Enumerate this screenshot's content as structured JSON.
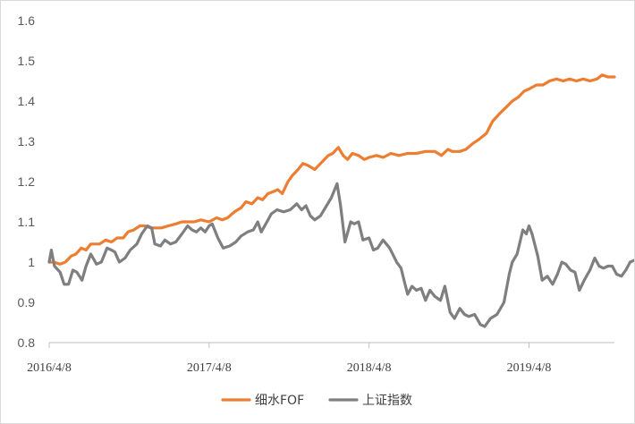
{
  "chart_data": {
    "type": "line",
    "title": "",
    "xlabel": "",
    "ylabel": "",
    "ylim": [
      0.8,
      1.6
    ],
    "y_ticks": [
      "0.8",
      "0.9",
      "1",
      "1.1",
      "1.2",
      "1.3",
      "1.4",
      "1.5",
      "1.6"
    ],
    "x_range": [
      "2016/4/8",
      "2019/10/20"
    ],
    "x_ticks": [
      "2016/4/8",
      "2017/4/8",
      "2018/4/8",
      "2019/4/8"
    ],
    "grid": false,
    "legend_position": "bottom-center",
    "series": [
      {
        "name": "细水FOF",
        "color": "#ED7D31",
        "points": [
          [
            "2016/4/8",
            1.0
          ],
          [
            "2016/4/18",
            1.0
          ],
          [
            "2016/5/3",
            0.995
          ],
          [
            "2016/5/15",
            1.0
          ],
          [
            "2016/5/28",
            1.015
          ],
          [
            "2016/6/8",
            1.02
          ],
          [
            "2016/6/20",
            1.035
          ],
          [
            "2016/7/1",
            1.03
          ],
          [
            "2016/7/12",
            1.045
          ],
          [
            "2016/8/1",
            1.045
          ],
          [
            "2016/8/15",
            1.055
          ],
          [
            "2016/8/28",
            1.05
          ],
          [
            "2016/9/10",
            1.06
          ],
          [
            "2016/9/24",
            1.06
          ],
          [
            "2016/10/5",
            1.075
          ],
          [
            "2016/10/18",
            1.08
          ],
          [
            "2016/11/1",
            1.09
          ],
          [
            "2016/11/12",
            1.09
          ],
          [
            "2016/11/25",
            1.085
          ],
          [
            "2016/12/8",
            1.085
          ],
          [
            "2016/12/20",
            1.085
          ],
          [
            "2017/1/5",
            1.09
          ],
          [
            "2017/1/22",
            1.095
          ],
          [
            "2017/2/5",
            1.1
          ],
          [
            "2017/2/20",
            1.1
          ],
          [
            "2017/3/5",
            1.1
          ],
          [
            "2017/3/20",
            1.105
          ],
          [
            "2017/4/8",
            1.1
          ],
          [
            "2017/4/25",
            1.11
          ],
          [
            "2017/5/8",
            1.105
          ],
          [
            "2017/5/20",
            1.11
          ],
          [
            "2017/6/5",
            1.125
          ],
          [
            "2017/6/20",
            1.135
          ],
          [
            "2017/7/1",
            1.15
          ],
          [
            "2017/7/15",
            1.145
          ],
          [
            "2017/7/28",
            1.16
          ],
          [
            "2017/8/8",
            1.155
          ],
          [
            "2017/8/20",
            1.17
          ],
          [
            "2017/9/1",
            1.175
          ],
          [
            "2017/9/12",
            1.18
          ],
          [
            "2017/9/22",
            1.17
          ],
          [
            "2017/10/5",
            1.2
          ],
          [
            "2017/10/15",
            1.215
          ],
          [
            "2017/10/28",
            1.23
          ],
          [
            "2017/11/8",
            1.245
          ],
          [
            "2017/11/20",
            1.24
          ],
          [
            "2017/12/5",
            1.23
          ],
          [
            "2017/12/18",
            1.245
          ],
          [
            "2018/1/5",
            1.265
          ],
          [
            "2018/1/15",
            1.27
          ],
          [
            "2018/1/28",
            1.285
          ],
          [
            "2018/2/8",
            1.265
          ],
          [
            "2018/2/18",
            1.255
          ],
          [
            "2018/3/1",
            1.27
          ],
          [
            "2018/3/15",
            1.265
          ],
          [
            "2018/3/28",
            1.255
          ],
          [
            "2018/4/8",
            1.26
          ],
          [
            "2018/4/25",
            1.265
          ],
          [
            "2018/5/10",
            1.26
          ],
          [
            "2018/5/28",
            1.27
          ],
          [
            "2018/6/15",
            1.265
          ],
          [
            "2018/7/5",
            1.27
          ],
          [
            "2018/7/25",
            1.27
          ],
          [
            "2018/8/15",
            1.275
          ],
          [
            "2018/9/5",
            1.275
          ],
          [
            "2018/9/20",
            1.265
          ],
          [
            "2018/10/5",
            1.28
          ],
          [
            "2018/10/15",
            1.275
          ],
          [
            "2018/11/1",
            1.275
          ],
          [
            "2018/11/15",
            1.28
          ],
          [
            "2018/12/1",
            1.295
          ],
          [
            "2018/12/15",
            1.305
          ],
          [
            "2019/1/1",
            1.32
          ],
          [
            "2019/1/15",
            1.35
          ],
          [
            "2019/2/1",
            1.37
          ],
          [
            "2019/2/15",
            1.385
          ],
          [
            "2019/3/1",
            1.4
          ],
          [
            "2019/3/15",
            1.41
          ],
          [
            "2019/3/28",
            1.425
          ],
          [
            "2019/4/8",
            1.43
          ],
          [
            "2019/4/25",
            1.44
          ],
          [
            "2019/5/10",
            1.44
          ],
          [
            "2019/5/25",
            1.45
          ],
          [
            "2019/6/10",
            1.455
          ],
          [
            "2019/6/25",
            1.45
          ],
          [
            "2019/7/10",
            1.455
          ],
          [
            "2019/7/25",
            1.45
          ],
          [
            "2019/8/10",
            1.455
          ],
          [
            "2019/8/25",
            1.45
          ],
          [
            "2019/9/10",
            1.455
          ],
          [
            "2019/9/22",
            1.465
          ],
          [
            "2019/10/5",
            1.46
          ],
          [
            "2019/10/20",
            1.46
          ]
        ]
      },
      {
        "name": "上证指数",
        "color": "#7F7F7F",
        "points": [
          [
            "2016/4/8",
            1.0
          ],
          [
            "2016/4/13",
            1.03
          ],
          [
            "2016/4/20",
            0.99
          ],
          [
            "2016/5/3",
            0.975
          ],
          [
            "2016/5/12",
            0.945
          ],
          [
            "2016/5/22",
            0.945
          ],
          [
            "2016/6/1",
            0.98
          ],
          [
            "2016/6/10",
            0.975
          ],
          [
            "2016/6/22",
            0.955
          ],
          [
            "2016/7/1",
            0.99
          ],
          [
            "2016/7/12",
            1.02
          ],
          [
            "2016/7/25",
            0.995
          ],
          [
            "2016/8/5",
            1.0
          ],
          [
            "2016/8/18",
            1.035
          ],
          [
            "2016/8/28",
            1.03
          ],
          [
            "2016/9/5",
            1.025
          ],
          [
            "2016/9/15",
            1.0
          ],
          [
            "2016/9/28",
            1.01
          ],
          [
            "2016/10/10",
            1.03
          ],
          [
            "2016/10/25",
            1.045
          ],
          [
            "2016/11/5",
            1.07
          ],
          [
            "2016/11/18",
            1.09
          ],
          [
            "2016/11/28",
            1.085
          ],
          [
            "2016/12/5",
            1.045
          ],
          [
            "2016/12/18",
            1.04
          ],
          [
            "2016/12/28",
            1.055
          ],
          [
            "2017/1/10",
            1.045
          ],
          [
            "2017/1/22",
            1.05
          ],
          [
            "2017/2/5",
            1.07
          ],
          [
            "2017/2/18",
            1.09
          ],
          [
            "2017/2/28",
            1.08
          ],
          [
            "2017/3/10",
            1.075
          ],
          [
            "2017/3/20",
            1.085
          ],
          [
            "2017/3/30",
            1.075
          ],
          [
            "2017/4/8",
            1.09
          ],
          [
            "2017/4/15",
            1.095
          ],
          [
            "2017/4/28",
            1.06
          ],
          [
            "2017/5/10",
            1.035
          ],
          [
            "2017/5/25",
            1.04
          ],
          [
            "2017/6/8",
            1.05
          ],
          [
            "2017/6/20",
            1.065
          ],
          [
            "2017/7/5",
            1.075
          ],
          [
            "2017/7/18",
            1.08
          ],
          [
            "2017/7/28",
            1.1
          ],
          [
            "2017/8/5",
            1.075
          ],
          [
            "2017/8/18",
            1.1
          ],
          [
            "2017/8/28",
            1.12
          ],
          [
            "2017/9/10",
            1.13
          ],
          [
            "2017/9/25",
            1.125
          ],
          [
            "2017/10/10",
            1.13
          ],
          [
            "2017/10/25",
            1.145
          ],
          [
            "2017/11/5",
            1.13
          ],
          [
            "2017/11/15",
            1.14
          ],
          [
            "2017/11/25",
            1.115
          ],
          [
            "2017/12/5",
            1.105
          ],
          [
            "2017/12/18",
            1.115
          ],
          [
            "2018/1/1",
            1.14
          ],
          [
            "2018/1/12",
            1.16
          ],
          [
            "2018/1/25",
            1.195
          ],
          [
            "2018/2/2",
            1.14
          ],
          [
            "2018/2/12",
            1.05
          ],
          [
            "2018/2/25",
            1.1
          ],
          [
            "2018/3/5",
            1.095
          ],
          [
            "2018/3/15",
            1.1
          ],
          [
            "2018/3/25",
            1.055
          ],
          [
            "2018/4/8",
            1.06
          ],
          [
            "2018/4/18",
            1.03
          ],
          [
            "2018/4/28",
            1.035
          ],
          [
            "2018/5/10",
            1.055
          ],
          [
            "2018/5/25",
            1.035
          ],
          [
            "2018/6/10",
            1.0
          ],
          [
            "2018/6/20",
            0.985
          ],
          [
            "2018/6/28",
            0.95
          ],
          [
            "2018/7/5",
            0.92
          ],
          [
            "2018/7/15",
            0.94
          ],
          [
            "2018/7/25",
            0.93
          ],
          [
            "2018/8/5",
            0.935
          ],
          [
            "2018/8/15",
            0.905
          ],
          [
            "2018/8/25",
            0.93
          ],
          [
            "2018/9/5",
            0.915
          ],
          [
            "2018/9/18",
            0.905
          ],
          [
            "2018/9/28",
            0.94
          ],
          [
            "2018/10/10",
            0.875
          ],
          [
            "2018/10/20",
            0.86
          ],
          [
            "2018/11/1",
            0.885
          ],
          [
            "2018/11/12",
            0.87
          ],
          [
            "2018/11/22",
            0.865
          ],
          [
            "2018/12/5",
            0.87
          ],
          [
            "2018/12/18",
            0.845
          ],
          [
            "2018/12/28",
            0.84
          ],
          [
            "2019/1/10",
            0.86
          ],
          [
            "2019/1/25",
            0.87
          ],
          [
            "2019/2/10",
            0.9
          ],
          [
            "2019/2/22",
            0.97
          ],
          [
            "2019/3/1",
            1.0
          ],
          [
            "2019/3/12",
            1.02
          ],
          [
            "2019/3/25",
            1.08
          ],
          [
            "2019/4/2",
            1.07
          ],
          [
            "2019/4/8",
            1.09
          ],
          [
            "2019/4/15",
            1.07
          ],
          [
            "2019/4/28",
            1.015
          ],
          [
            "2019/5/8",
            0.955
          ],
          [
            "2019/5/20",
            0.965
          ],
          [
            "2019/6/1",
            0.945
          ],
          [
            "2019/6/12",
            0.97
          ],
          [
            "2019/6/22",
            1.0
          ],
          [
            "2019/7/1",
            0.995
          ],
          [
            "2019/7/12",
            0.98
          ],
          [
            "2019/7/22",
            0.975
          ],
          [
            "2019/8/1",
            0.93
          ],
          [
            "2019/8/12",
            0.955
          ],
          [
            "2019/8/25",
            0.98
          ],
          [
            "2019/9/5",
            1.01
          ],
          [
            "2019/9/15",
            0.99
          ],
          [
            "2019/9/25",
            0.985
          ],
          [
            "2019/10/5",
            0.99
          ],
          [
            "2019/10/15",
            0.99
          ],
          [
            "2019/10/25",
            0.97
          ],
          [
            "2019/11/5",
            0.965
          ],
          [
            "2019/11/15",
            0.98
          ],
          [
            "2019/11/25",
            1.0
          ],
          [
            "2019/12/5",
            1.005
          ]
        ]
      }
    ]
  }
}
